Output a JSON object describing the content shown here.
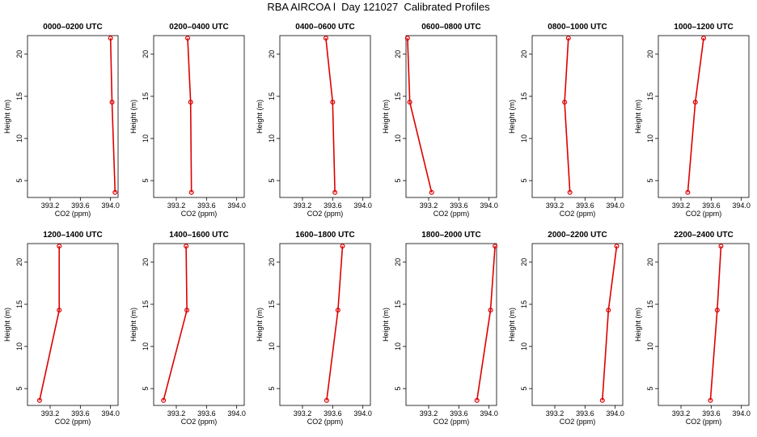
{
  "title": "RBA AIRCOA l  Day 121027  Calibrated Profiles",
  "colors": {
    "profile": "#dd0000",
    "axis": "#000000"
  },
  "chart_data": {
    "type": "line",
    "xlabel": "CO2 (ppm)",
    "ylabel": "Height (m)",
    "xlim": [
      392.9,
      394.1
    ],
    "ylim": [
      3,
      22.2
    ],
    "xticks": [
      "393.2",
      "393.6",
      "394.0"
    ],
    "yticks": [
      "5",
      "10",
      "15",
      "20"
    ],
    "heights": [
      3.6,
      14.3,
      21.9
    ],
    "panels": [
      {
        "title": "0000–0200 UTC",
        "xlim": [
          392.9,
          394.1
        ],
        "co2": [
          394.06,
          394.02,
          394.0
        ]
      },
      {
        "title": "0200–0400 UTC",
        "xlim": [
          392.9,
          394.1
        ],
        "co2": [
          393.4,
          393.39,
          393.35
        ]
      },
      {
        "title": "0400–0600 UTC",
        "xlim": [
          392.9,
          394.1
        ],
        "co2": [
          393.63,
          393.6,
          393.51
        ]
      },
      {
        "title": "0600–0800 UTC",
        "xlim": [
          392.9,
          394.1
        ],
        "co2": [
          393.24,
          392.95,
          392.92
        ]
      },
      {
        "title": "0800–1000 UTC",
        "xlim": [
          392.9,
          394.1
        ],
        "co2": [
          393.4,
          393.33,
          393.38
        ]
      },
      {
        "title": "1000–1200 UTC",
        "xlim": [
          392.9,
          394.1
        ],
        "co2": [
          393.29,
          393.39,
          393.5
        ]
      },
      {
        "title": "1200–1400 UTC",
        "xlim": [
          392.9,
          394.1
        ],
        "co2": [
          393.06,
          393.32,
          393.32
        ]
      },
      {
        "title": "1400–1600 UTC",
        "xlim": [
          392.9,
          394.1
        ],
        "co2": [
          393.03,
          393.34,
          393.33
        ]
      },
      {
        "title": "1600–1800 UTC",
        "xlim": [
          392.9,
          394.1
        ],
        "co2": [
          393.52,
          393.67,
          393.73
        ]
      },
      {
        "title": "1800–2000 UTC",
        "xlim": [
          392.9,
          394.1
        ],
        "co2": [
          393.84,
          394.02,
          394.08
        ]
      },
      {
        "title": "2000–2200 UTC",
        "xlim": [
          392.9,
          394.1
        ],
        "co2": [
          393.83,
          393.91,
          394.02
        ]
      },
      {
        "title": "2200–2400 UTC",
        "xlim": [
          392.9,
          394.1
        ],
        "co2": [
          393.59,
          393.68,
          393.73
        ]
      }
    ]
  }
}
